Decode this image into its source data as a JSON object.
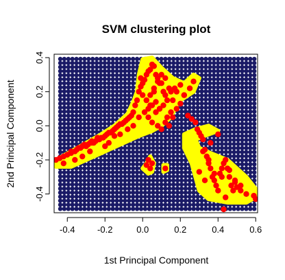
{
  "chart_data": {
    "type": "scatter",
    "title": "SVM clustering plot",
    "xlabel": "1st Principal Component",
    "ylabel": "2nd Principal Component",
    "xlim": [
      -0.47,
      0.61
    ],
    "ylim": [
      -0.51,
      0.42
    ],
    "xticks": [
      "-0.4",
      "-0.2",
      "0.0",
      "0.2",
      "0.4",
      "0.6"
    ],
    "yticks": [
      "-0.4",
      "-0.2",
      "0.0",
      "0.2",
      "0.4"
    ],
    "grid": false,
    "colors": {
      "background_grid": "#1a1a66",
      "decision_region": "#ffff00",
      "data_points": "#ff0000",
      "frame": "#000000"
    },
    "decision_regions": [
      {
        "name": "region-main",
        "polygon": [
          [
            -0.46,
            -0.24
          ],
          [
            -0.46,
            -0.2
          ],
          [
            -0.38,
            -0.15
          ],
          [
            -0.3,
            -0.1
          ],
          [
            -0.22,
            -0.05
          ],
          [
            -0.15,
            0.0
          ],
          [
            -0.08,
            0.07
          ],
          [
            -0.05,
            0.14
          ],
          [
            -0.03,
            0.2
          ],
          [
            -0.02,
            0.3
          ],
          [
            0.0,
            0.39
          ],
          [
            0.05,
            0.4
          ],
          [
            0.1,
            0.34
          ],
          [
            0.16,
            0.28
          ],
          [
            0.22,
            0.25
          ],
          [
            0.27,
            0.3
          ],
          [
            0.3,
            0.28
          ],
          [
            0.27,
            0.2
          ],
          [
            0.2,
            0.15
          ],
          [
            0.18,
            0.12
          ],
          [
            0.15,
            0.05
          ],
          [
            0.1,
            0.0
          ],
          [
            0.05,
            -0.03
          ],
          [
            -0.02,
            -0.06
          ],
          [
            -0.1,
            -0.1
          ],
          [
            -0.2,
            -0.15
          ],
          [
            -0.3,
            -0.2
          ],
          [
            -0.38,
            -0.24
          ]
        ]
      },
      {
        "name": "region-right",
        "polygon": [
          [
            0.22,
            -0.13
          ],
          [
            0.22,
            -0.05
          ],
          [
            0.28,
            -0.02
          ],
          [
            0.35,
            0.0
          ],
          [
            0.4,
            -0.03
          ],
          [
            0.35,
            -0.05
          ],
          [
            0.28,
            -0.08
          ],
          [
            0.3,
            -0.13
          ],
          [
            0.36,
            -0.16
          ],
          [
            0.45,
            -0.2
          ],
          [
            0.55,
            -0.3
          ],
          [
            0.6,
            -0.37
          ],
          [
            0.6,
            -0.42
          ],
          [
            0.55,
            -0.45
          ],
          [
            0.45,
            -0.45
          ],
          [
            0.35,
            -0.43
          ],
          [
            0.3,
            -0.38
          ],
          [
            0.28,
            -0.3
          ],
          [
            0.26,
            -0.22
          ]
        ]
      },
      {
        "name": "region-small",
        "polygon": [
          [
            0.02,
            -0.22
          ],
          [
            0.04,
            -0.18
          ],
          [
            0.06,
            -0.22
          ],
          [
            0.05,
            -0.27
          ],
          [
            0.03,
            -0.28
          ],
          [
            0.0,
            -0.25
          ]
        ]
      },
      {
        "name": "region-tiny",
        "polygon": [
          [
            0.11,
            -0.27
          ],
          [
            0.13,
            -0.26
          ],
          [
            0.13,
            -0.23
          ],
          [
            0.11,
            -0.23
          ]
        ]
      }
    ],
    "series": [
      {
        "x": [
          -0.46,
          -0.44,
          -0.42,
          -0.4,
          -0.38,
          -0.36,
          -0.35,
          -0.33,
          -0.32,
          -0.3,
          -0.29,
          -0.28,
          -0.27,
          -0.26,
          -0.25,
          -0.24,
          -0.23,
          -0.22,
          -0.21,
          -0.2,
          -0.19,
          -0.18,
          -0.17,
          -0.16,
          -0.15,
          -0.14,
          -0.13,
          -0.12,
          -0.11,
          -0.1,
          -0.09,
          -0.08,
          -0.07,
          -0.06,
          -0.05,
          -0.04,
          -0.03,
          -0.02,
          -0.01,
          0.0,
          0.01,
          0.02,
          0.03,
          0.04,
          0.05,
          0.06,
          0.07,
          0.08,
          0.09,
          0.1,
          0.11,
          0.12,
          0.13,
          0.14,
          0.15,
          0.16,
          0.17,
          0.18,
          0.2,
          0.22,
          0.24,
          0.26,
          0.28,
          0.29,
          0.3,
          0.31,
          0.32,
          0.33,
          0.34,
          0.35,
          0.36,
          0.37,
          0.38,
          0.39,
          0.4,
          0.41,
          0.42,
          0.43,
          0.44,
          0.45,
          0.46,
          0.47,
          0.48,
          0.49,
          0.5,
          0.52,
          0.55,
          0.59,
          0.6,
          -0.38,
          -0.34,
          -0.31,
          -0.27,
          -0.24,
          -0.2,
          -0.18,
          -0.15,
          -0.12,
          -0.08,
          -0.05,
          -0.02,
          0.01,
          0.03,
          0.05,
          0.07,
          0.09,
          0.11,
          0.13,
          0.15,
          0.02,
          0.04,
          0.06,
          -0.01,
          0.0,
          0.02,
          0.04,
          0.06,
          0.08,
          0.1,
          0.12,
          0.03,
          0.05,
          0.07,
          0.09,
          0.08,
          0.1,
          0.12,
          0.14,
          0.16,
          0.18,
          0.2,
          0.22,
          0.25,
          0.27,
          -0.32,
          -0.28,
          -0.36,
          -0.42,
          0.32,
          0.35,
          0.38,
          0.42,
          0.46,
          0.49,
          0.52,
          0.36,
          0.4,
          0.33,
          0.3,
          0.44,
          0.43
        ],
        "y": [
          -0.2,
          -0.19,
          -0.18,
          -0.17,
          -0.16,
          -0.15,
          -0.14,
          -0.13,
          -0.12,
          -0.12,
          -0.11,
          -0.1,
          -0.1,
          -0.1,
          -0.09,
          -0.08,
          -0.08,
          -0.07,
          -0.07,
          -0.06,
          -0.05,
          -0.04,
          -0.04,
          -0.03,
          -0.02,
          -0.01,
          0.0,
          0.01,
          0.01,
          0.02,
          0.03,
          0.04,
          0.05,
          0.06,
          0.08,
          0.12,
          0.15,
          0.2,
          0.23,
          0.25,
          0.27,
          0.3,
          0.32,
          0.33,
          0.36,
          0.35,
          0.3,
          0.28,
          0.25,
          0.25,
          0.2,
          0.18,
          0.15,
          0.22,
          0.2,
          0.15,
          0.22,
          0.2,
          0.24,
          0.18,
          0.06,
          0.04,
          0.02,
          -0.02,
          -0.04,
          -0.06,
          -0.08,
          -0.14,
          -0.18,
          -0.22,
          -0.25,
          -0.3,
          -0.32,
          -0.35,
          -0.38,
          -0.28,
          -0.25,
          -0.22,
          -0.2,
          -0.25,
          -0.3,
          -0.35,
          -0.38,
          -0.32,
          -0.36,
          -0.35,
          -0.4,
          -0.41,
          -0.43,
          -0.15,
          -0.13,
          -0.11,
          -0.09,
          -0.07,
          -0.12,
          -0.1,
          -0.06,
          -0.05,
          -0.02,
          0.0,
          0.05,
          0.08,
          0.1,
          0.12,
          0.14,
          0.1,
          0.12,
          0.05,
          0.08,
          0.15,
          0.18,
          0.22,
          0.28,
          0.18,
          0.15,
          0.12,
          0.2,
          0.26,
          0.3,
          0.28,
          0.05,
          0.02,
          0.08,
          0.1,
          0.0,
          -0.02,
          0.02,
          0.0,
          0.05,
          0.1,
          0.13,
          0.18,
          0.22,
          0.26,
          -0.18,
          -0.15,
          -0.2,
          -0.22,
          -0.15,
          -0.2,
          -0.28,
          -0.3,
          -0.26,
          -0.33,
          -0.38,
          -0.1,
          -0.05,
          -0.32,
          -0.27,
          -0.42,
          -0.49
        ],
        "color": "#ff0000"
      },
      {
        "x": [
          0.03,
          0.05,
          0.04,
          0.12,
          0.02
        ],
        "y": [
          -0.2,
          -0.22,
          -0.25,
          -0.25,
          -0.23
        ],
        "color": "#ff0000"
      }
    ]
  }
}
